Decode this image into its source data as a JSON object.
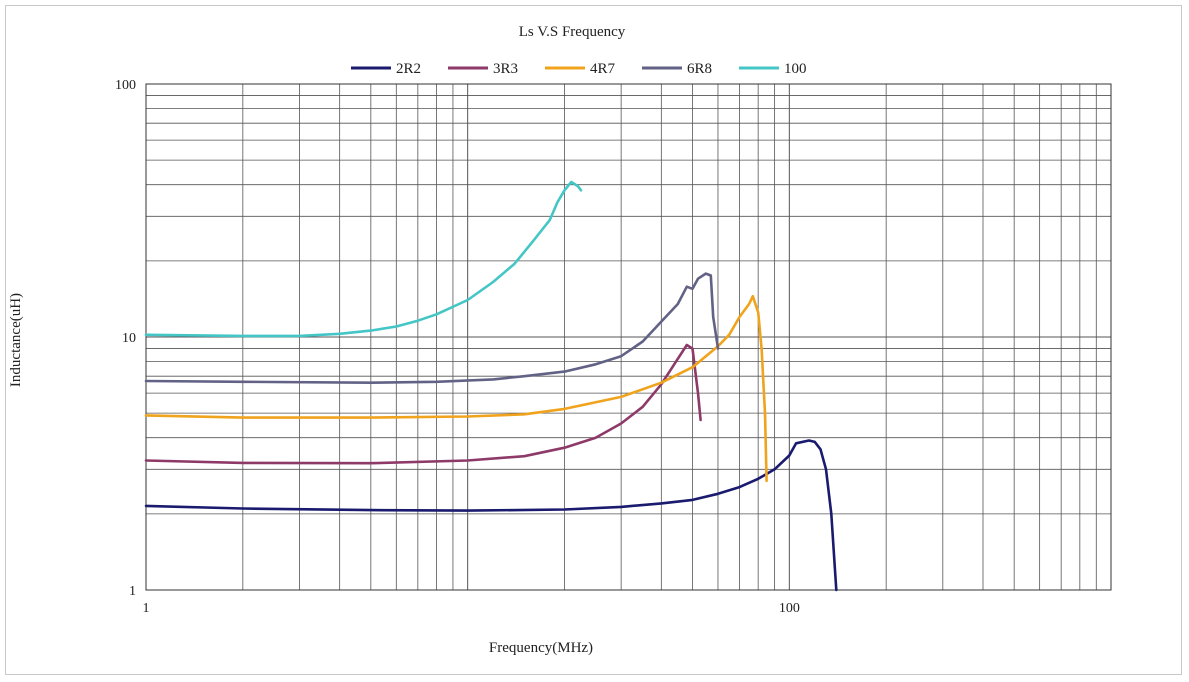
{
  "chart_data": {
    "type": "line",
    "title": "Ls V.S Frequency",
    "xlabel": "Frequency(MHz)",
    "ylabel": "Inductance(uH)",
    "x_scale": "log",
    "y_scale": "log",
    "xlim": [
      1,
      1000
    ],
    "ylim": [
      1,
      100
    ],
    "x_tick_labels": [
      {
        "value": 1,
        "label": "1"
      },
      {
        "value": 100,
        "label": "100"
      }
    ],
    "y_tick_labels": [
      {
        "value": 1,
        "label": "1"
      },
      {
        "value": 10,
        "label": "10"
      },
      {
        "value": 100,
        "label": "100"
      }
    ],
    "grid": true,
    "legend_position": "top-center",
    "series": [
      {
        "name": "2R2",
        "color": "#1a1a6e",
        "points": [
          [
            1,
            2.15
          ],
          [
            2,
            2.1
          ],
          [
            5,
            2.07
          ],
          [
            10,
            2.06
          ],
          [
            20,
            2.08
          ],
          [
            30,
            2.13
          ],
          [
            40,
            2.2
          ],
          [
            50,
            2.27
          ],
          [
            60,
            2.4
          ],
          [
            70,
            2.55
          ],
          [
            80,
            2.75
          ],
          [
            90,
            3.0
          ],
          [
            100,
            3.4
          ],
          [
            105,
            3.8
          ],
          [
            115,
            3.9
          ],
          [
            120,
            3.85
          ],
          [
            125,
            3.6
          ],
          [
            130,
            3.0
          ],
          [
            135,
            2.0
          ],
          [
            140,
            1.0
          ]
        ]
      },
      {
        "name": "3R3",
        "color": "#8e3a69",
        "points": [
          [
            1,
            3.25
          ],
          [
            2,
            3.18
          ],
          [
            5,
            3.17
          ],
          [
            10,
            3.25
          ],
          [
            15,
            3.38
          ],
          [
            20,
            3.65
          ],
          [
            25,
            4.0
          ],
          [
            30,
            4.55
          ],
          [
            35,
            5.3
          ],
          [
            40,
            6.5
          ],
          [
            45,
            8.2
          ],
          [
            48,
            9.3
          ],
          [
            50,
            9.0
          ],
          [
            52,
            6.0
          ],
          [
            53,
            4.7
          ]
        ]
      },
      {
        "name": "4R7",
        "color": "#f0a31c",
        "points": [
          [
            1,
            4.9
          ],
          [
            2,
            4.8
          ],
          [
            5,
            4.8
          ],
          [
            10,
            4.85
          ],
          [
            15,
            4.95
          ],
          [
            20,
            5.2
          ],
          [
            30,
            5.8
          ],
          [
            40,
            6.6
          ],
          [
            50,
            7.6
          ],
          [
            60,
            9.2
          ],
          [
            65,
            10.2
          ],
          [
            70,
            12.0
          ],
          [
            75,
            13.5
          ],
          [
            77,
            14.5
          ],
          [
            80,
            12.5
          ],
          [
            82,
            9.0
          ],
          [
            84,
            5.0
          ],
          [
            85,
            2.7
          ]
        ]
      },
      {
        "name": "6R8",
        "color": "#626286",
        "points": [
          [
            1,
            6.7
          ],
          [
            2,
            6.65
          ],
          [
            5,
            6.6
          ],
          [
            8,
            6.65
          ],
          [
            12,
            6.8
          ],
          [
            15,
            7.0
          ],
          [
            20,
            7.3
          ],
          [
            25,
            7.8
          ],
          [
            30,
            8.4
          ],
          [
            35,
            9.6
          ],
          [
            40,
            11.5
          ],
          [
            45,
            13.5
          ],
          [
            48,
            15.8
          ],
          [
            50,
            15.5
          ],
          [
            52,
            17.0
          ],
          [
            55,
            17.8
          ],
          [
            57,
            17.5
          ],
          [
            58,
            12.0
          ],
          [
            60,
            9.0
          ]
        ]
      },
      {
        "name": "100",
        "color": "#44c6c6",
        "points": [
          [
            1,
            10.2
          ],
          [
            2,
            10.1
          ],
          [
            3,
            10.1
          ],
          [
            4,
            10.3
          ],
          [
            5,
            10.6
          ],
          [
            6,
            11.0
          ],
          [
            7,
            11.6
          ],
          [
            8,
            12.3
          ],
          [
            10,
            14.0
          ],
          [
            12,
            16.5
          ],
          [
            14,
            19.5
          ],
          [
            16,
            24.0
          ],
          [
            18,
            29.0
          ],
          [
            19,
            34.0
          ],
          [
            20,
            38.0
          ],
          [
            21,
            41.0
          ],
          [
            22,
            39.5
          ],
          [
            22.5,
            38.0
          ]
        ]
      }
    ]
  }
}
